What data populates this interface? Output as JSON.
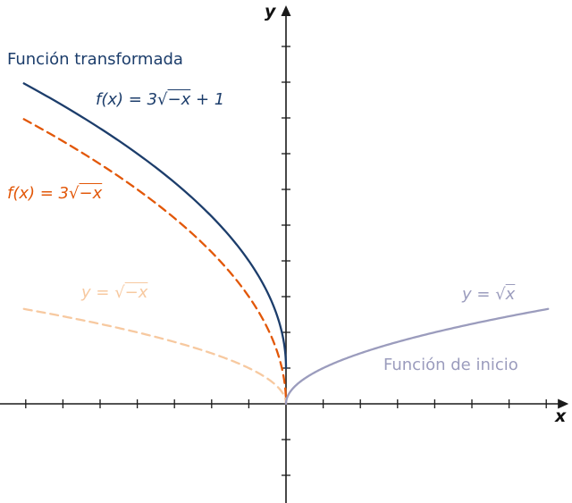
{
  "chart_data": {
    "type": "line",
    "title": "",
    "xlabel": "x",
    "ylabel": "y",
    "xlim": [
      -7.7,
      7.6
    ],
    "ylim": [
      -2.7,
      11.05
    ],
    "x_tick_step": 1,
    "y_tick_step": 1,
    "grid": false,
    "legend_position": "inline-annotations",
    "series": [
      {
        "name": "f(x) = 3√(−x) + 1",
        "label": {
          "pre": "f(x) = 3",
          "rad": "−x",
          "post": " + 1"
        },
        "fn": {
          "a": 3,
          "sign": -1,
          "b": 1
        },
        "domain": [
          -7.05,
          0
        ],
        "color": "#1c3d6b",
        "dashed": false,
        "points": [
          [
            -7,
            8.94
          ],
          [
            -6,
            8.35
          ],
          [
            -5,
            7.71
          ],
          [
            -4,
            7
          ],
          [
            -3,
            6.2
          ],
          [
            -2,
            5.24
          ],
          [
            -1,
            4
          ],
          [
            0,
            1
          ]
        ]
      },
      {
        "name": "f(x) = 3√(−x)",
        "label": {
          "pre": "f(x) = 3",
          "rad": "−x",
          "post": ""
        },
        "fn": {
          "a": 3,
          "sign": -1,
          "b": 0
        },
        "domain": [
          -7.05,
          0
        ],
        "color": "#e25708",
        "dashed": true,
        "points": [
          [
            -7,
            7.94
          ],
          [
            -6,
            7.35
          ],
          [
            -5,
            6.71
          ],
          [
            -4,
            6
          ],
          [
            -3,
            5.2
          ],
          [
            -2,
            4.24
          ],
          [
            -1,
            3
          ],
          [
            0,
            0
          ]
        ]
      },
      {
        "name": "y = √(−x)",
        "label": {
          "pre": "y = ",
          "rad": "−x",
          "post": ""
        },
        "fn": {
          "a": 1,
          "sign": -1,
          "b": 0
        },
        "domain": [
          -7.05,
          0
        ],
        "color": "#f7c9a0",
        "dashed": true,
        "points": [
          [
            -7,
            2.65
          ],
          [
            -6,
            2.45
          ],
          [
            -5,
            2.24
          ],
          [
            -4,
            2
          ],
          [
            -3,
            1.73
          ],
          [
            -2,
            1.41
          ],
          [
            -1,
            1
          ],
          [
            0,
            0
          ]
        ]
      },
      {
        "name": "y = √(x)",
        "label": {
          "pre": "y = ",
          "rad": "x",
          "post": ""
        },
        "fn": {
          "a": 1,
          "sign": 1,
          "b": 0
        },
        "domain": [
          0,
          7.05
        ],
        "color": "#9b9cbd",
        "dashed": false,
        "points": [
          [
            0,
            0
          ],
          [
            1,
            1
          ],
          [
            2,
            1.41
          ],
          [
            3,
            1.73
          ],
          [
            4,
            2
          ],
          [
            5,
            2.24
          ],
          [
            6,
            2.45
          ],
          [
            7,
            2.65
          ]
        ]
      }
    ],
    "annotations": {
      "transformed_caption": "Función transformada",
      "start_caption": "Función de inicio"
    }
  },
  "labels": {
    "sqrt": "√"
  },
  "colors": {
    "navy": "#1c3d6b",
    "orange": "#e25708",
    "peach": "#f7c9a0",
    "purple": "#9b9cbd",
    "axis": "#1a1a1a"
  }
}
